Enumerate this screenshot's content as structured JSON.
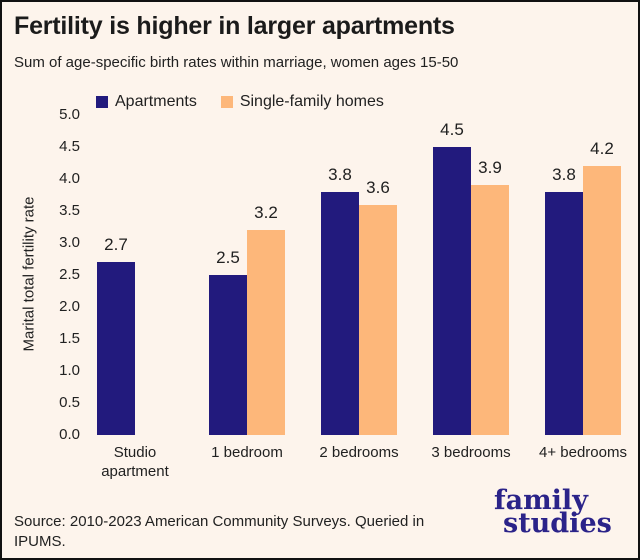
{
  "header": {
    "title": "Fertility is higher in larger apartments",
    "subtitle": "Sum of age-specific birth rates within marriage, women ages 15-50"
  },
  "chart_data": {
    "type": "bar",
    "title": "Fertility is higher in larger apartments",
    "subtitle": "Sum of age-specific birth rates within marriage, women ages 15-50",
    "categories": [
      "Studio apartment",
      "1 bedroom",
      "2 bedrooms",
      "3 bedrooms",
      "4+ bedrooms"
    ],
    "series": [
      {
        "name": "Apartments",
        "color": "#221a7d",
        "values": [
          2.7,
          2.5,
          3.8,
          4.5,
          3.8
        ]
      },
      {
        "name": "Single-family homes",
        "color": "#fdb77a",
        "values": [
          null,
          3.2,
          3.6,
          3.9,
          4.2
        ]
      }
    ],
    "xlabel": "",
    "ylabel": "Marital total fertility rate",
    "ylim": [
      0,
      5
    ],
    "ytick_step": 0.5,
    "grid": false,
    "legend_position": "top",
    "value_labels": true
  },
  "footer": {
    "source": {
      "line1": "Source: 2010-2023 American Community Surveys. Queried in",
      "line2": "IPUMS."
    },
    "logo": {
      "line1": "family",
      "line2": "studies"
    }
  },
  "colors": {
    "background": "#fdf4ec",
    "border": "#111111",
    "title_text": "#1b1b1b",
    "body_text": "#212121",
    "logo_text": "#2b2389"
  }
}
